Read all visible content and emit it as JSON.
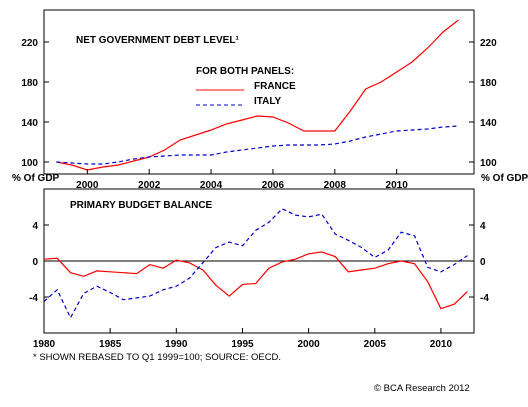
{
  "chart_data": [
    {
      "type": "line",
      "title": "NET GOVERNMENT DEBT LEVEL¹",
      "legend": {
        "title": "FOR BOTH PANELS:",
        "placement": "center"
      },
      "x_range": [
        1998.6,
        2012.5
      ],
      "x_ticks": [
        "2000",
        "2002",
        "2004",
        "2006",
        "2008",
        "2010"
      ],
      "ylim": [
        88,
        252
      ],
      "y_ticks": [
        "100",
        "140",
        "180",
        "220"
      ],
      "series": [
        {
          "name": "FRANCE",
          "color": "#ff0000",
          "style": "solid",
          "points": [
            [
              1999.0,
              100
            ],
            [
              1999.5,
              97
            ],
            [
              2000.0,
              92
            ],
            [
              2000.5,
              95
            ],
            [
              2001.0,
              97
            ],
            [
              2001.5,
              101
            ],
            [
              2002.0,
              105
            ],
            [
              2002.5,
              112
            ],
            [
              2003.0,
              122
            ],
            [
              2003.5,
              127
            ],
            [
              2004.0,
              132
            ],
            [
              2004.5,
              138
            ],
            [
              2005.0,
              142
            ],
            [
              2005.5,
              146
            ],
            [
              2006.0,
              145
            ],
            [
              2006.5,
              139
            ],
            [
              2007.0,
              131
            ],
            [
              2007.5,
              131
            ],
            [
              2008.0,
              131
            ],
            [
              2008.5,
              151
            ],
            [
              2009.0,
              173
            ],
            [
              2009.5,
              180
            ],
            [
              2010.0,
              190
            ],
            [
              2010.5,
              200
            ],
            [
              2011.0,
              214
            ],
            [
              2011.5,
              230
            ],
            [
              2012.0,
              242
            ]
          ]
        },
        {
          "name": "ITALY",
          "color": "#0000cc",
          "style": "dashed",
          "points": [
            [
              1999.0,
              100
            ],
            [
              1999.5,
              99
            ],
            [
              2000.0,
              98
            ],
            [
              2000.5,
              98
            ],
            [
              2001.0,
              100
            ],
            [
              2001.5,
              103
            ],
            [
              2002.0,
              105
            ],
            [
              2002.5,
              106
            ],
            [
              2003.0,
              107
            ],
            [
              2003.5,
              107
            ],
            [
              2004.0,
              107
            ],
            [
              2004.5,
              110
            ],
            [
              2005.0,
              112
            ],
            [
              2005.5,
              114
            ],
            [
              2006.0,
              116
            ],
            [
              2006.5,
              117
            ],
            [
              2007.0,
              117
            ],
            [
              2007.5,
              117
            ],
            [
              2008.0,
              118
            ],
            [
              2008.5,
              121
            ],
            [
              2009.0,
              125
            ],
            [
              2009.5,
              128
            ],
            [
              2010.0,
              131
            ],
            [
              2010.5,
              132
            ],
            [
              2011.0,
              133
            ],
            [
              2011.5,
              135
            ],
            [
              2012.0,
              136
            ]
          ]
        }
      ]
    },
    {
      "type": "line",
      "title": "PRIMARY BUDGET BALANCE",
      "ylabel": "% Of GDP",
      "x_range": [
        1980,
        2012.5
      ],
      "x_ticks": [
        "1980",
        "1985",
        "1990",
        "1995",
        "2000",
        "2005",
        "2010"
      ],
      "ylim": [
        -8,
        8
      ],
      "y_ticks": [
        "4",
        "0",
        "-4"
      ],
      "zero_line": true,
      "series": [
        {
          "name": "FRANCE",
          "color": "#ff0000",
          "style": "solid",
          "points": [
            [
              1980.0,
              0.2
            ],
            [
              1981.0,
              0.3
            ],
            [
              1982.0,
              -1.3
            ],
            [
              1983.0,
              -1.7
            ],
            [
              1984.0,
              -1.1
            ],
            [
              1985.0,
              -1.2
            ],
            [
              1986.0,
              -1.3
            ],
            [
              1987.0,
              -1.4
            ],
            [
              1988.0,
              -0.4
            ],
            [
              1989.0,
              -0.8
            ],
            [
              1990.0,
              0.1
            ],
            [
              1991.0,
              -0.2
            ],
            [
              1992.0,
              -1.0
            ],
            [
              1993.0,
              -2.7
            ],
            [
              1994.0,
              -3.9
            ],
            [
              1995.0,
              -2.6
            ],
            [
              1996.0,
              -2.5
            ],
            [
              1997.0,
              -0.8
            ],
            [
              1998.0,
              -0.1
            ],
            [
              1999.0,
              0.2
            ],
            [
              2000.0,
              0.8
            ],
            [
              2001.0,
              1.0
            ],
            [
              2002.0,
              0.5
            ],
            [
              2003.0,
              -1.2
            ],
            [
              2004.0,
              -1.0
            ],
            [
              2005.0,
              -0.8
            ],
            [
              2006.0,
              -0.3
            ],
            [
              2007.0,
              0.0
            ],
            [
              2008.0,
              -0.3
            ],
            [
              2009.0,
              -2.3
            ],
            [
              2010.0,
              -5.3
            ],
            [
              2011.0,
              -4.8
            ],
            [
              2012.0,
              -3.4
            ]
          ]
        },
        {
          "name": "ITALY",
          "color": "#0000cc",
          "style": "dashed",
          "points": [
            [
              1980.0,
              -4.5
            ],
            [
              1981.0,
              -3.2
            ],
            [
              1982.0,
              -6.3
            ],
            [
              1983.0,
              -3.6
            ],
            [
              1984.0,
              -2.8
            ],
            [
              1985.0,
              -3.5
            ],
            [
              1986.0,
              -4.3
            ],
            [
              1987.0,
              -4.1
            ],
            [
              1988.0,
              -3.9
            ],
            [
              1989.0,
              -3.2
            ],
            [
              1990.0,
              -2.8
            ],
            [
              1991.0,
              -1.9
            ],
            [
              1992.0,
              -0.2
            ],
            [
              1993.0,
              1.5
            ],
            [
              1994.0,
              2.1
            ],
            [
              1995.0,
              1.7
            ],
            [
              1996.0,
              3.4
            ],
            [
              1997.0,
              4.3
            ],
            [
              1998.0,
              5.8
            ],
            [
              1999.0,
              5.1
            ],
            [
              2000.0,
              4.9
            ],
            [
              2001.0,
              5.2
            ],
            [
              2002.0,
              3.0
            ],
            [
              2003.0,
              2.3
            ],
            [
              2004.0,
              1.5
            ],
            [
              2005.0,
              0.4
            ],
            [
              2006.0,
              1.2
            ],
            [
              2007.0,
              3.2
            ],
            [
              2008.0,
              2.8
            ],
            [
              2009.0,
              -0.7
            ],
            [
              2010.0,
              -1.2
            ],
            [
              2011.0,
              -0.4
            ],
            [
              2012.0,
              0.6
            ]
          ]
        }
      ]
    }
  ],
  "footnote": "* SHOWN REBASED TO Q1 1999=100; SOURCE: OECD.",
  "credit": "© BCA Research 2012"
}
